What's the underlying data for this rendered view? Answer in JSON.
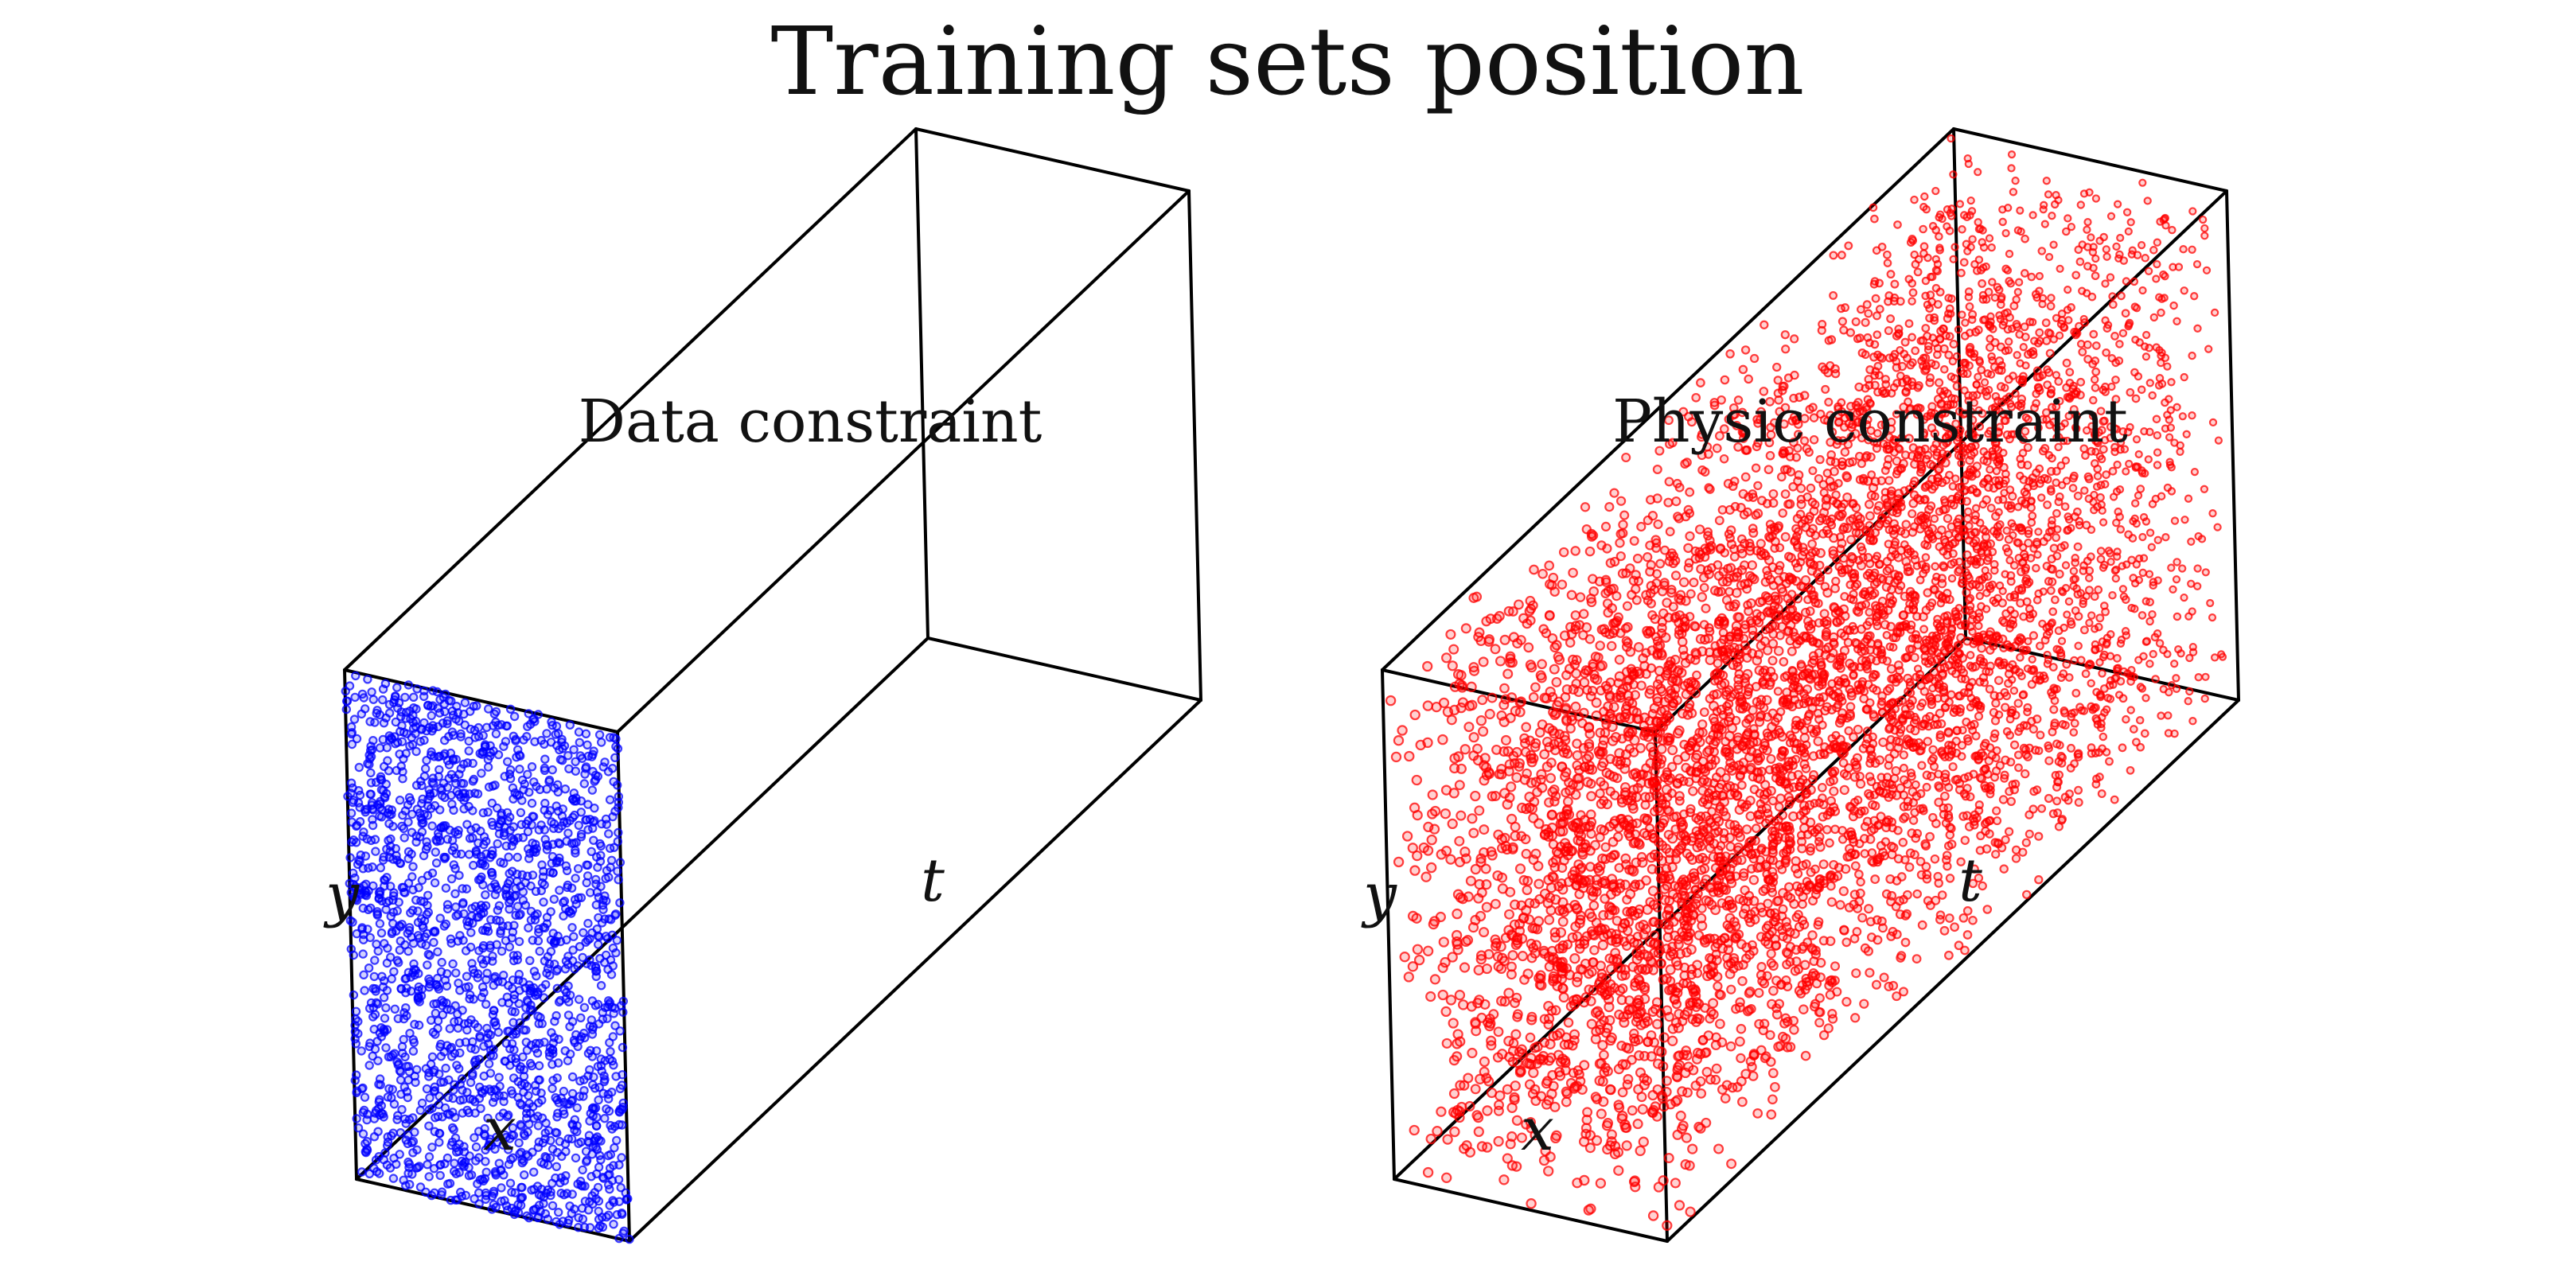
{
  "figure": {
    "title": "Training sets position"
  },
  "chart_data": [
    {
      "type": "scatter",
      "projection": "3d",
      "title": "Data constraint",
      "xlabel": "x",
      "ylabel": "y",
      "zlabel": "t",
      "color": "#0000ff",
      "marker": "hollow circle",
      "tick_labels": "none",
      "grid": false,
      "distribution": "uniform on the t = 0 face",
      "xlim": [
        0,
        1
      ],
      "ylim": [
        0,
        1
      ],
      "tlim": [
        0,
        1
      ],
      "point_count_estimate": 2000,
      "t_values": [
        0
      ]
    },
    {
      "type": "scatter",
      "projection": "3d",
      "title": "Physic constraint",
      "xlabel": "x",
      "ylabel": "y",
      "zlabel": "t",
      "color": "#ff0000",
      "marker": "hollow circle",
      "tick_labels": "none",
      "grid": false,
      "distribution": "uniform throughout the (x, y, t) volume",
      "xlim": [
        0,
        1
      ],
      "ylim": [
        0,
        1
      ],
      "tlim": [
        0,
        1
      ],
      "point_count_estimate": 6000,
      "t_values": [
        0,
        1
      ]
    }
  ]
}
